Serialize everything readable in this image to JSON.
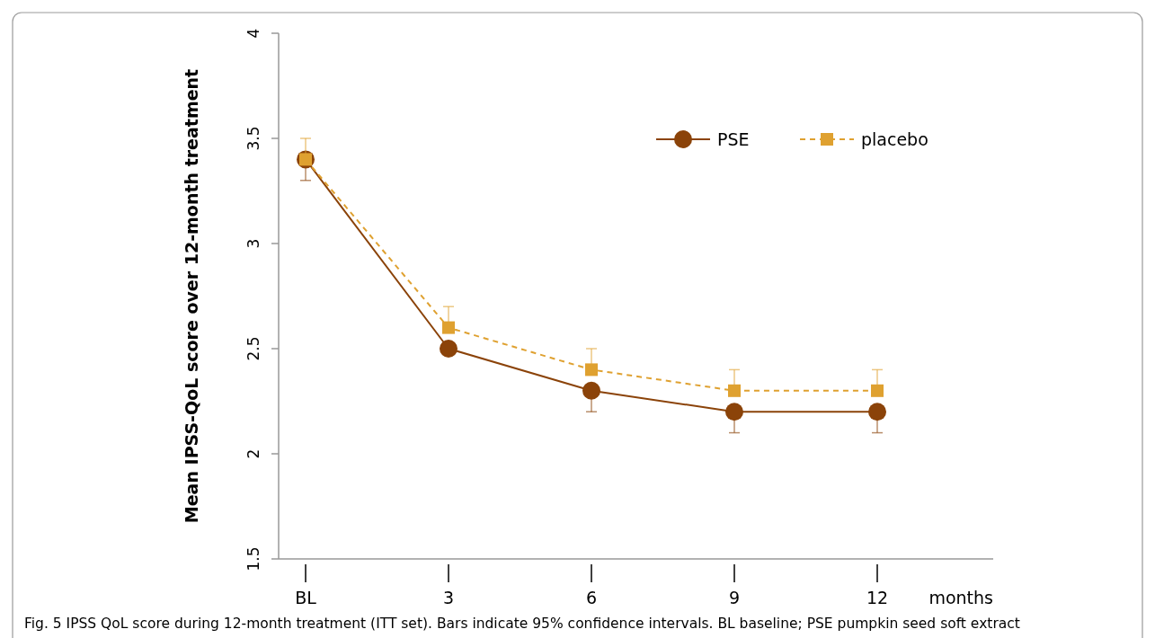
{
  "chart_data": {
    "type": "line",
    "ylabel": "Mean IPSS-QoL score over 12-month treatment",
    "xlabel": "months",
    "categories": [
      "BL",
      "3",
      "6",
      "9",
      "12"
    ],
    "ylim": [
      1.5,
      4
    ],
    "yticks": [
      1.5,
      2,
      2.5,
      3,
      3.5,
      4
    ],
    "grid": false,
    "legend": "top right",
    "series": [
      {
        "name": "PSE",
        "color": "#8b4309",
        "marker": "circle",
        "line_style": "solid",
        "values": [
          3.4,
          2.5,
          2.3,
          2.2,
          2.2
        ],
        "errors": [
          [
            3.3,
            3.4
          ],
          null,
          [
            2.2,
            2.3
          ],
          [
            2.1,
            2.2
          ],
          [
            2.1,
            2.2
          ]
        ]
      },
      {
        "name": "placebo",
        "color": "#dfa130",
        "marker": "square",
        "line_style": "dashed",
        "values": [
          3.4,
          2.6,
          2.4,
          2.3,
          2.3
        ],
        "errors": [
          [
            3.4,
            3.5
          ],
          [
            2.6,
            2.7
          ],
          [
            2.4,
            2.5
          ],
          [
            2.3,
            2.4
          ],
          [
            2.3,
            2.4
          ]
        ]
      }
    ],
    "annotations": [
      "Fig. 5  IPSS QoL score during 12-month treatment (ITT set). Bars indicate 95% confidence intervals. BL baseline; PSE pumpkin seed soft extract"
    ]
  }
}
